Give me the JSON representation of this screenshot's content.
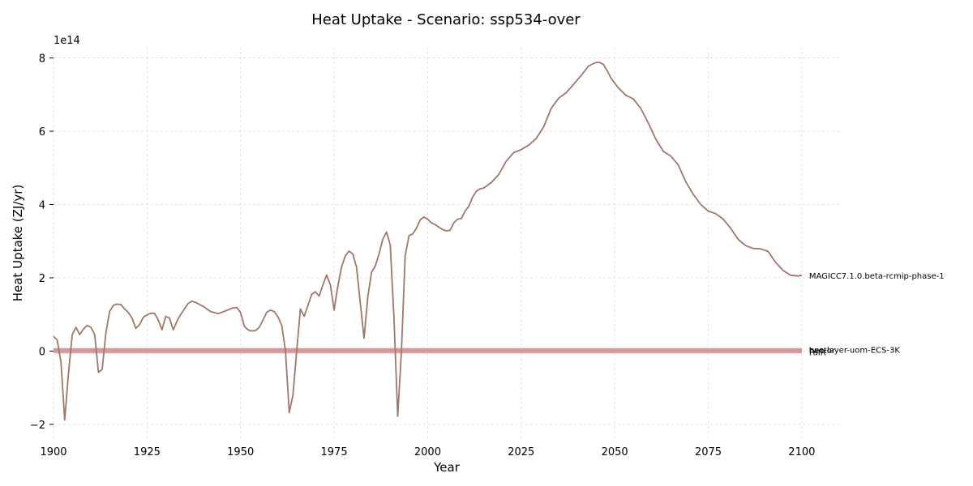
{
  "chart_data": {
    "type": "line",
    "title": "Heat Uptake - Scenario: ssp534-over",
    "xlabel": "Year",
    "ylabel": "Heat Uptake (ZJ/yr)",
    "y_scale_label": "1e14",
    "xlim": [
      1900,
      2110
    ],
    "ylim": [
      -2.4,
      8.3
    ],
    "x_ticks": [
      1900,
      1925,
      1950,
      1975,
      2000,
      2025,
      2050,
      2075,
      2100
    ],
    "x_tick_labels": [
      "1900",
      "1925",
      "1950",
      "1975",
      "2000",
      "2025",
      "2050",
      "2075",
      "2100"
    ],
    "y_ticks": [
      -2,
      0,
      2,
      4,
      6,
      8
    ],
    "y_tick_labels": [
      "−2",
      "0",
      "2",
      "4",
      "6",
      "8"
    ],
    "grid": true,
    "legend": "inline labels at line ends",
    "series": [
      {
        "name": "MAGICC7.1.0.beta-rcmip-phase-1",
        "color": "#a0776a",
        "x": [
          1900,
          1901,
          1902,
          1903,
          1904,
          1905,
          1906,
          1907,
          1908,
          1909,
          1910,
          1911,
          1912,
          1913,
          1914,
          1915,
          1916,
          1917,
          1918,
          1919,
          1920,
          1921,
          1922,
          1923,
          1924,
          1925,
          1926,
          1927,
          1928,
          1929,
          1930,
          1931,
          1932,
          1933,
          1934,
          1935,
          1936,
          1937,
          1938,
          1940,
          1942,
          1944,
          1946,
          1948,
          1949,
          1950,
          1951,
          1952,
          1953,
          1954,
          1955,
          1956,
          1957,
          1958,
          1959,
          1960,
          1961,
          1962,
          1963,
          1964,
          1965,
          1966,
          1967,
          1968,
          1969,
          1970,
          1971,
          1972,
          1973,
          1974,
          1975,
          1976,
          1977,
          1978,
          1979,
          1980,
          1981,
          1982,
          1983,
          1984,
          1985,
          1986,
          1987,
          1988,
          1989,
          1990,
          1991,
          1992,
          1993,
          1994,
          1995,
          1996,
          1997,
          1998,
          1999,
          2000,
          2001,
          2002,
          2003,
          2004,
          2005,
          2006,
          2007,
          2008,
          2009,
          2010,
          2011,
          2012,
          2013,
          2014,
          2015,
          2017,
          2019,
          2021,
          2023,
          2025,
          2027,
          2029,
          2031,
          2033,
          2035,
          2037,
          2039,
          2041,
          2043,
          2045,
          2046,
          2047,
          2048,
          2049,
          2051,
          2053,
          2055,
          2057,
          2059,
          2061,
          2063,
          2065,
          2067,
          2069,
          2071,
          2073,
          2075,
          2077,
          2079,
          2081,
          2083,
          2085,
          2087,
          2089,
          2091,
          2093,
          2095,
          2097,
          2099,
          2100
        ],
        "y": [
          0.4,
          0.3,
          -0.3,
          -1.88,
          -0.6,
          0.45,
          0.65,
          0.45,
          0.6,
          0.7,
          0.65,
          0.45,
          -0.58,
          -0.5,
          0.5,
          1.08,
          1.25,
          1.28,
          1.27,
          1.15,
          1.05,
          0.9,
          0.62,
          0.72,
          0.92,
          0.99,
          1.03,
          1.03,
          0.85,
          0.58,
          0.95,
          0.9,
          0.58,
          0.82,
          1.0,
          1.15,
          1.3,
          1.36,
          1.33,
          1.22,
          1.08,
          1.02,
          1.1,
          1.18,
          1.19,
          1.05,
          0.68,
          0.58,
          0.55,
          0.56,
          0.65,
          0.85,
          1.06,
          1.12,
          1.08,
          0.93,
          0.7,
          0.0,
          -1.68,
          -1.2,
          0.0,
          1.15,
          0.95,
          1.25,
          1.55,
          1.62,
          1.5,
          1.8,
          2.08,
          1.8,
          1.12,
          1.78,
          2.3,
          2.6,
          2.73,
          2.65,
          2.28,
          1.3,
          0.35,
          1.48,
          2.15,
          2.32,
          2.65,
          3.05,
          3.25,
          2.9,
          0.9,
          -1.78,
          0.0,
          2.6,
          3.15,
          3.2,
          3.35,
          3.58,
          3.66,
          3.6,
          3.5,
          3.45,
          3.38,
          3.32,
          3.28,
          3.3,
          3.5,
          3.6,
          3.62,
          3.82,
          3.95,
          4.2,
          4.36,
          4.43,
          4.45,
          4.6,
          4.82,
          5.18,
          5.42,
          5.5,
          5.62,
          5.8,
          6.12,
          6.62,
          6.9,
          7.05,
          7.28,
          7.52,
          7.78,
          7.88,
          7.88,
          7.82,
          7.65,
          7.45,
          7.18,
          6.98,
          6.88,
          6.62,
          6.22,
          5.78,
          5.45,
          5.32,
          5.08,
          4.62,
          4.28,
          4.0,
          3.82,
          3.75,
          3.6,
          3.35,
          3.05,
          2.88,
          2.8,
          2.79,
          2.72,
          2.42,
          2.2,
          2.07,
          2.05,
          2.07
        ]
      },
      {
        "name": "FaIR",
        "color": "#e88a8a",
        "x": [
          1900,
          2100
        ],
        "y": [
          -0.02,
          -0.02
        ]
      },
      {
        "name": "two-layer-uom-ECS-3K",
        "color": "#d4a6a6",
        "x": [
          1900,
          2100
        ],
        "y": [
          0.04,
          0.04
        ]
      },
      {
        "name": "hector",
        "color": "#c99a9a",
        "x": [
          1900,
          2100
        ],
        "y": [
          0.03,
          0.03
        ]
      }
    ]
  }
}
